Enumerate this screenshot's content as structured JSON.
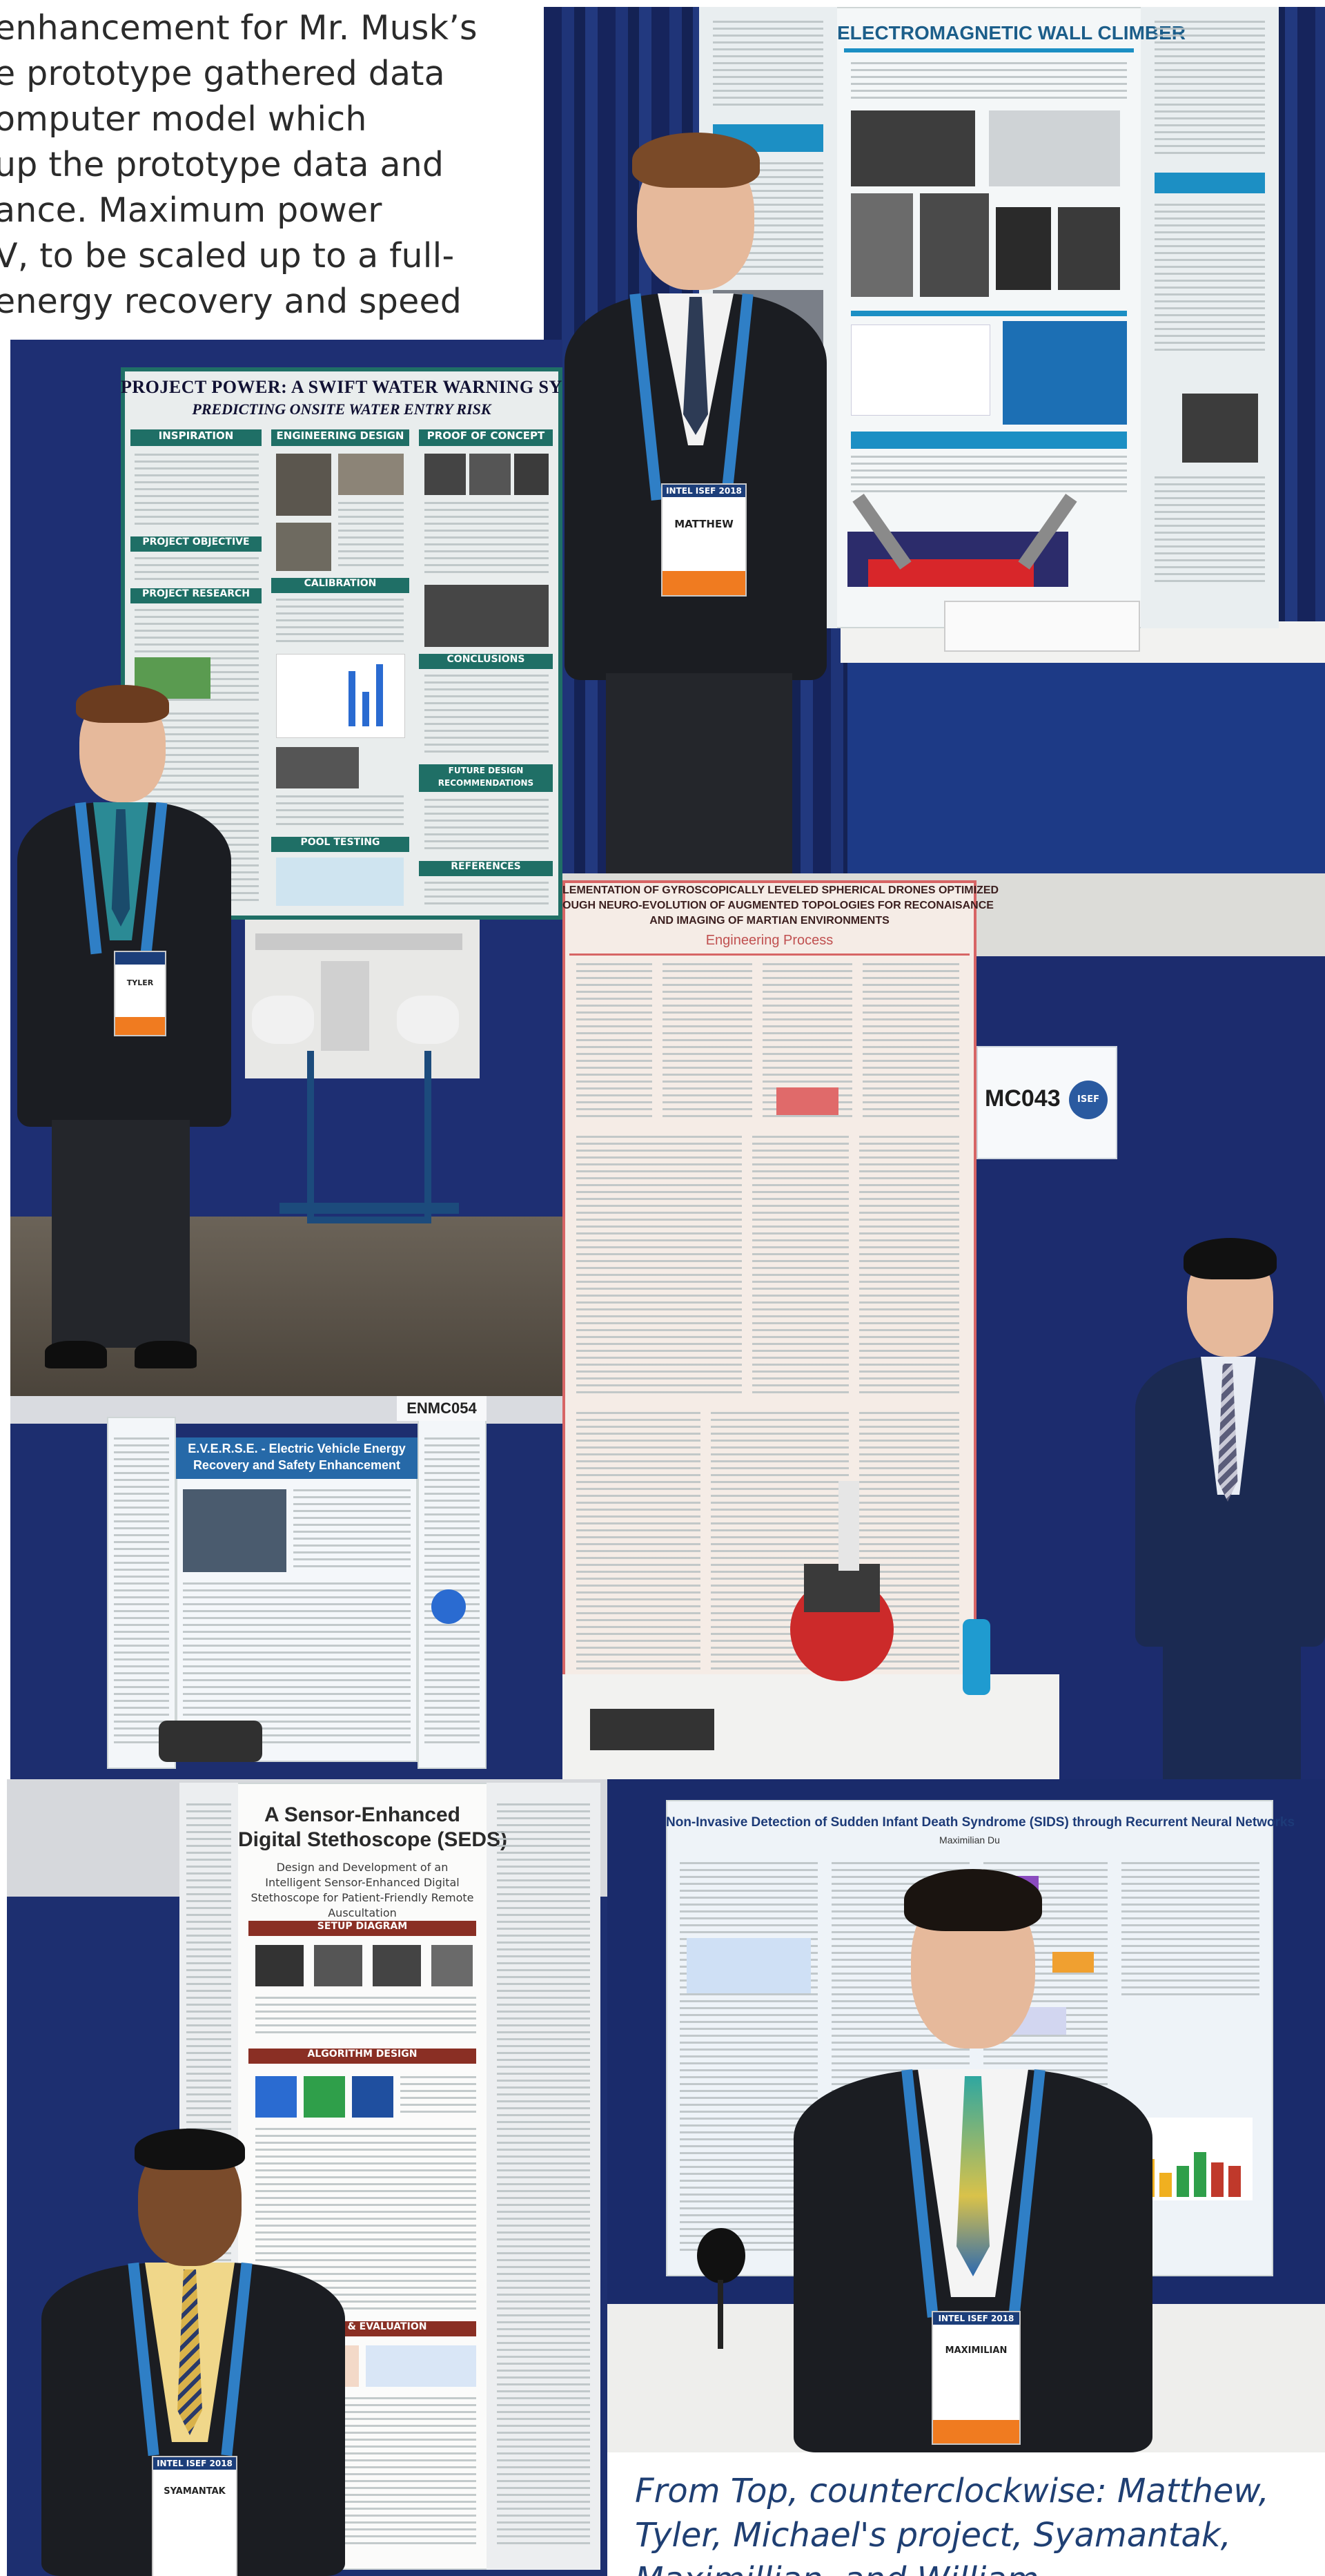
{
  "article": {
    "lines": [
      "enhancement for Mr. Musk’s",
      "e prototype gathered data",
      "omputer model which",
      "up the prototype data and",
      "ance. Maximum power",
      "V, to be scaled up to a full-",
      "energy recovery and speed"
    ]
  },
  "photos": {
    "matthew": {
      "poster_title": "ELECTROMAGNETIC WALL CLIMBER",
      "badge_event": "INTEL ISEF 2018",
      "badge_name": "MATTHEW"
    },
    "tyler": {
      "poster_title": "PROJECT POWER: A SWIFT WATER WARNING SYSTEM",
      "poster_subtitle": "PREDICTING ONSITE WATER ENTRY RISK",
      "sections": [
        "INSPIRATION",
        "ENGINEERING DESIGN",
        "PROOF OF CONCEPT",
        "PROJECT OBJECTIVE",
        "PROJECT RESEARCH",
        "CALIBRATION",
        "CONCLUSIONS",
        "FUTURE DESIGN RECOMMENDATIONS",
        "POOL TESTING",
        "REFERENCES"
      ],
      "badge_name": "TYLER"
    },
    "michael": {
      "poster_title_1": "LEMENTATION OF GYROSCOPICALLY LEVELED SPHERICAL DRONES OPTIMIZED",
      "poster_title_2": "OUGH NEURO-EVOLUTION OF AUGMENTED TOPOLOGIES FOR RECONAISANCE",
      "poster_title_3": "AND IMAGING OF MARTIAN ENVIRONMENTS",
      "poster_subtitle": "Engineering Process",
      "booth_code": "MC043",
      "booth_logo": "ISEF"
    },
    "everse": {
      "poster_title_1": "E.V.E.R.S.E. - Electric Vehicle Energy",
      "poster_title_2": "Recovery and Safety Enhancement",
      "booth_code": "ENMC054"
    },
    "syamantak": {
      "poster_title_1": "A Sensor-Enhanced",
      "poster_title_2": "Digital Stethoscope (SEDS)",
      "poster_subtitle": "Design and Development of an Intelligent Sensor-Enhanced Digital Stethoscope for Patient-Friendly Remote Auscultation",
      "sections": [
        "SETUP DIAGRAM",
        "ALGORITHM DESIGN",
        "TESTING & EVALUATION"
      ],
      "badge_event": "INTEL ISEF 2018",
      "badge_name": "SYAMANTAK"
    },
    "maximilian": {
      "poster_title": "Non-Invasive Detection of Sudden Infant Death Syndrome (SIDS) through Recurrent Neural Networks",
      "poster_author": "Maximilian Du",
      "badge_event": "INTEL ISEF 2018",
      "badge_name": "MAXIMILIAN"
    }
  },
  "caption": {
    "line1": "From Top, counterclockwise: Matthew,",
    "line2": "Tyler, Michael's project, Syamantak,",
    "line3": "Maximillian, and William"
  },
  "colors": {
    "caption": "#1f3f73",
    "curtain": "#1a2b6a",
    "tyler_poster_accent": "#1f6f66",
    "wall_climber_accent": "#1c8fc4",
    "michael_poster_accent": "#d76565",
    "seds_accent": "#8a2f24"
  }
}
